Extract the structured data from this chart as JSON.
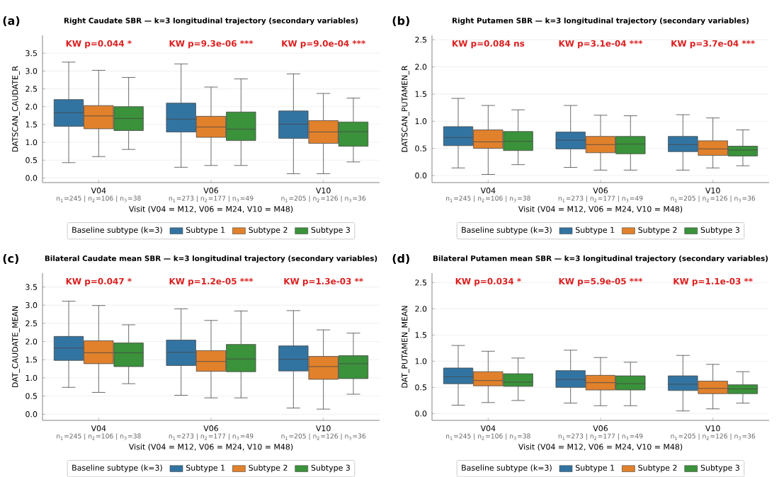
{
  "chart_data": [
    {
      "type": "box",
      "title": "Right Caudate SBR — k=3 longitudinal trajectory (secondary variables)",
      "xlabel": "Visit (V04 = M12, V06 = M24, V10 = M48)",
      "ylabel": "DATSCAN_CAUDATE_R",
      "legend_title": "Baseline subtype (k=3)",
      "categories": [
        "V04",
        "V06",
        "V10"
      ],
      "series": [
        {
          "name": "Subtype 1",
          "color": "#3274a1",
          "boxes": [
            {
              "low": 0.43,
              "q1": 1.45,
              "median": 1.83,
              "q3": 2.2,
              "high": 3.25
            },
            {
              "low": 0.3,
              "q1": 1.29,
              "median": 1.65,
              "q3": 2.1,
              "high": 3.2
            },
            {
              "low": 0.12,
              "q1": 1.11,
              "median": 1.51,
              "q3": 1.88,
              "high": 2.92
            }
          ]
        },
        {
          "name": "Subtype 2",
          "color": "#e1812c",
          "boxes": [
            {
              "low": 0.6,
              "q1": 1.38,
              "median": 1.74,
              "q3": 2.03,
              "high": 3.02
            },
            {
              "low": 0.35,
              "q1": 1.14,
              "median": 1.43,
              "q3": 1.73,
              "high": 2.55
            },
            {
              "low": 0.12,
              "q1": 0.97,
              "median": 1.29,
              "q3": 1.61,
              "high": 2.37
            }
          ]
        },
        {
          "name": "Subtype 3",
          "color": "#3a923a",
          "boxes": [
            {
              "low": 0.8,
              "q1": 1.33,
              "median": 1.67,
              "q3": 2.0,
              "high": 2.82
            },
            {
              "low": 0.35,
              "q1": 1.05,
              "median": 1.37,
              "q3": 1.85,
              "high": 2.78
            },
            {
              "low": 0.45,
              "q1": 0.89,
              "median": 1.3,
              "q3": 1.57,
              "high": 2.24
            }
          ]
        }
      ],
      "ylim": [
        -0.13,
        4.0
      ],
      "yticks": [
        {
          "value": 0,
          "label": "0.0"
        },
        0.5,
        {
          "value": 1,
          "label": "1.0"
        },
        1.5,
        {
          "value": 2,
          "label": "2.0"
        },
        2.5,
        {
          "value": 3,
          "label": "3.0"
        },
        3.5
      ],
      "grid": "y",
      "legend": "bottom",
      "annotations": [
        "(a)",
        "KW p=0.044 *",
        "KW p=9.3e-06 ***",
        "KW p=9.0e-04 ***",
        "n$_{1}$=245 | n$_{2}$=106 | n$_{3}$=38",
        "n$_{1}$=273 | n$_{2}$=177 | n$_{3}$=49",
        "n$_{1}$=205 | n$_{2}$=126 | n$_{3}$=36"
      ]
    },
    {
      "type": "box",
      "title": "Right Putamen SBR — k=3 longitudinal trajectory (secondary variables)",
      "xlabel": "Visit (V04 = M12, V06 = M24, V10 = M48)",
      "ylabel": "DATSCAN_PUTAMEN_R",
      "legend_title": "Baseline subtype (k=3)",
      "categories": [
        "V04",
        "V06",
        "V10"
      ],
      "series": [
        {
          "name": "Subtype 1",
          "color": "#3274a1",
          "boxes": [
            {
              "low": 0.14,
              "q1": 0.55,
              "median": 0.7,
              "q3": 0.9,
              "high": 1.42
            },
            {
              "low": 0.15,
              "q1": 0.49,
              "median": 0.65,
              "q3": 0.8,
              "high": 1.29
            },
            {
              "low": 0.1,
              "q1": 0.44,
              "median": 0.57,
              "q3": 0.72,
              "high": 1.12
            }
          ]
        },
        {
          "name": "Subtype 2",
          "color": "#e1812c",
          "boxes": [
            {
              "low": 0.02,
              "q1": 0.5,
              "median": 0.62,
              "q3": 0.84,
              "high": 1.29
            },
            {
              "low": 0.1,
              "q1": 0.42,
              "median": 0.57,
              "q3": 0.72,
              "high": 1.11
            },
            {
              "low": 0.14,
              "q1": 0.37,
              "median": 0.49,
              "q3": 0.64,
              "high": 1.06
            }
          ]
        },
        {
          "name": "Subtype 3",
          "color": "#3a923a",
          "boxes": [
            {
              "low": 0.2,
              "q1": 0.46,
              "median": 0.63,
              "q3": 0.81,
              "high": 1.21
            },
            {
              "low": 0.1,
              "q1": 0.4,
              "median": 0.58,
              "q3": 0.72,
              "high": 1.1
            },
            {
              "low": 0.18,
              "q1": 0.36,
              "median": 0.47,
              "q3": 0.54,
              "high": 0.84
            }
          ]
        }
      ],
      "ylim": [
        -0.13,
        2.58
      ],
      "yticks": [
        {
          "value": 0,
          "label": "0.0"
        },
        0.5,
        {
          "value": 1,
          "label": "1.0"
        },
        1.5,
        {
          "value": 2,
          "label": "2.0"
        },
        2.5
      ],
      "grid": "y",
      "legend": "bottom",
      "annotations": [
        "(b)",
        "KW p=0.084 ns",
        "KW p=3.1e-04 ***",
        "KW p=3.7e-04 ***",
        "n$_{1}$=245 | n$_{2}$=106 | n$_{3}$=38",
        "n$_{1}$=273 | n$_{2}$=177 | n$_{3}$=49",
        "n$_{1}$=205 | n$_{2}$=126 | n$_{3}$=36"
      ]
    },
    {
      "type": "box",
      "title": "Bilateral Caudate mean SBR — k=3 longitudinal trajectory (secondary variables)",
      "xlabel": "Visit (V04 = M12, V06 = M24, V10 = M48)",
      "ylabel": "DAT_CAUDATE_MEAN",
      "legend_title": "Baseline subtype (k=3)",
      "categories": [
        "V04",
        "V06",
        "V10"
      ],
      "series": [
        {
          "name": "Subtype 1",
          "color": "#3274a1",
          "boxes": [
            {
              "low": 0.74,
              "q1": 1.48,
              "median": 1.82,
              "q3": 2.14,
              "high": 3.11
            },
            {
              "low": 0.52,
              "q1": 1.34,
              "median": 1.7,
              "q3": 2.04,
              "high": 2.9
            },
            {
              "low": 0.17,
              "q1": 1.19,
              "median": 1.51,
              "q3": 1.88,
              "high": 2.85
            }
          ]
        },
        {
          "name": "Subtype 2",
          "color": "#e1812c",
          "boxes": [
            {
              "low": 0.6,
              "q1": 1.39,
              "median": 1.69,
              "q3": 2.02,
              "high": 2.99
            },
            {
              "low": 0.45,
              "q1": 1.18,
              "median": 1.45,
              "q3": 1.75,
              "high": 2.58
            },
            {
              "low": 0.14,
              "q1": 0.96,
              "median": 1.31,
              "q3": 1.59,
              "high": 2.32
            }
          ]
        },
        {
          "name": "Subtype 3",
          "color": "#3a923a",
          "boxes": [
            {
              "low": 0.84,
              "q1": 1.31,
              "median": 1.69,
              "q3": 1.96,
              "high": 2.46
            },
            {
              "low": 0.45,
              "q1": 1.17,
              "median": 1.52,
              "q3": 1.92,
              "high": 2.84
            },
            {
              "low": 0.55,
              "q1": 0.98,
              "median": 1.39,
              "q3": 1.61,
              "high": 2.23
            }
          ]
        }
      ],
      "ylim": [
        -0.17,
        3.88
      ],
      "yticks": [
        {
          "value": 0,
          "label": "0.0"
        },
        0.5,
        {
          "value": 1,
          "label": "1.0"
        },
        1.5,
        {
          "value": 2,
          "label": "2.0"
        },
        2.5,
        {
          "value": 3,
          "label": "3.0"
        },
        3.5
      ],
      "grid": "y",
      "legend": "bottom",
      "annotations": [
        "(c)",
        "KW p=0.047 *",
        "KW p=1.2e-05 ***",
        "KW p=1.3e-03 **",
        "n$_{1}$=245 | n$_{2}$=106 | n$_{3}$=38",
        "n$_{1}$=273 | n$_{2}$=177 | n$_{3}$=49",
        "n$_{1}$=205 | n$_{2}$=126 | n$_{3}$=36"
      ]
    },
    {
      "type": "box",
      "title": "Bilateral Putamen mean SBR — k=3 longitudinal trajectory (secondary variables)",
      "xlabel": "Visit (V04 = M12, V06 = M24, V10 = M48)",
      "ylabel": "DAT_PUTAMEN_MEAN",
      "legend_title": "Baseline subtype (k=3)",
      "categories": [
        "V04",
        "V06",
        "V10"
      ],
      "series": [
        {
          "name": "Subtype 1",
          "color": "#3274a1",
          "boxes": [
            {
              "low": 0.16,
              "q1": 0.57,
              "median": 0.7,
              "q3": 0.87,
              "high": 1.3
            },
            {
              "low": 0.2,
              "q1": 0.5,
              "median": 0.65,
              "q3": 0.82,
              "high": 1.21
            },
            {
              "low": 0.05,
              "q1": 0.44,
              "median": 0.56,
              "q3": 0.72,
              "high": 1.11
            }
          ]
        },
        {
          "name": "Subtype 2",
          "color": "#e1812c",
          "boxes": [
            {
              "low": 0.21,
              "q1": 0.53,
              "median": 0.63,
              "q3": 0.8,
              "high": 1.19
            },
            {
              "low": 0.15,
              "q1": 0.45,
              "median": 0.59,
              "q3": 0.73,
              "high": 1.07
            },
            {
              "low": 0.09,
              "q1": 0.38,
              "median": 0.48,
              "q3": 0.62,
              "high": 0.94
            }
          ]
        },
        {
          "name": "Subtype 3",
          "color": "#3a923a",
          "boxes": [
            {
              "low": 0.25,
              "q1": 0.52,
              "median": 0.6,
              "q3": 0.76,
              "high": 1.06
            },
            {
              "low": 0.15,
              "q1": 0.45,
              "median": 0.57,
              "q3": 0.72,
              "high": 0.98
            },
            {
              "low": 0.2,
              "q1": 0.38,
              "median": 0.47,
              "q3": 0.55,
              "high": 0.8
            }
          ]
        }
      ],
      "ylim": [
        -0.13,
        2.68
      ],
      "yticks": [
        {
          "value": 0,
          "label": "0.0"
        },
        0.5,
        {
          "value": 1,
          "label": "1.0"
        },
        1.5,
        {
          "value": 2,
          "label": "2.0"
        },
        2.5
      ],
      "grid": "y",
      "legend": "bottom",
      "annotations": [
        "(d)",
        "KW p=0.034 *",
        "KW p=5.9e-05 ***",
        "KW p=1.1e-03 **",
        "n$_{1}$=245 | n$_{2}$=106 | n$_{3}$=38",
        "n$_{1}$=273 | n$_{2}$=177 | n$_{3}$=49",
        "n$_{1}$=205 | n$_{2}$=126 | n$_{3}$=36"
      ]
    }
  ]
}
